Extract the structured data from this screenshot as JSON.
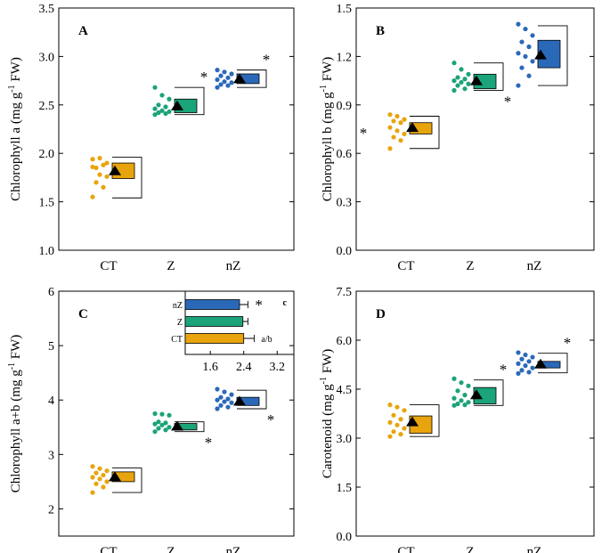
{
  "colors": {
    "CT": "#E8A40D",
    "Z": "#1BA37A",
    "nZ": "#2A69B8"
  },
  "chart_data": [
    {
      "id": "A",
      "type": "box-dot",
      "panel_letter": "A",
      "ylabel": "Chlorophyll a (mg g-1 FW)",
      "ylabel_main": "Chlorophyll a (mg g",
      "ylabel_sup": "-1",
      "ylabel_end": " FW)",
      "ylim": [
        1.0,
        3.5
      ],
      "yticks": [
        "1.0",
        "1.5",
        "2.0",
        "2.5",
        "3.0",
        "3.5"
      ],
      "categories": [
        "CT",
        "Z",
        "nZ"
      ],
      "groups": [
        {
          "name": "CT",
          "points": [
            1.94,
            1.95,
            1.9,
            1.85,
            1.88,
            1.86,
            1.78,
            1.76,
            1.7,
            1.65,
            1.55
          ],
          "mean": 1.82,
          "box": [
            1.74,
            1.9
          ],
          "whisker": [
            1.54,
            1.96
          ],
          "star": ""
        },
        {
          "name": "Z",
          "points": [
            2.68,
            2.6,
            2.56,
            2.5,
            2.48,
            2.46,
            2.44,
            2.43,
            2.42,
            2.41,
            2.4
          ],
          "mean": 2.49,
          "box": [
            2.42,
            2.56
          ],
          "whisker": [
            2.4,
            2.68
          ],
          "star": "*"
        },
        {
          "name": "nZ",
          "points": [
            2.86,
            2.84,
            2.82,
            2.8,
            2.78,
            2.76,
            2.74,
            2.73,
            2.71,
            2.7,
            2.68
          ],
          "mean": 2.77,
          "box": [
            2.72,
            2.82
          ],
          "whisker": [
            2.68,
            2.86
          ],
          "star": "*"
        }
      ],
      "star_positions": [
        "",
        "above",
        "above"
      ]
    },
    {
      "id": "B",
      "type": "box-dot",
      "panel_letter": "B",
      "ylabel": "Chlorophyll b (mg g-1 FW)",
      "ylabel_main": "Chlorophyll b (mg g",
      "ylabel_sup": "-1",
      "ylabel_end": " FW)",
      "ylim": [
        0.0,
        1.5
      ],
      "yticks": [
        "0.0",
        "0.3",
        "0.6",
        "0.9",
        "1.2",
        "1.5"
      ],
      "categories": [
        "CT",
        "Z",
        "nZ"
      ],
      "groups": [
        {
          "name": "CT",
          "points": [
            0.84,
            0.83,
            0.81,
            0.8,
            0.79,
            0.76,
            0.74,
            0.72,
            0.7,
            0.68,
            0.63
          ],
          "mean": 0.76,
          "box": [
            0.72,
            0.79
          ],
          "whisker": [
            0.63,
            0.83
          ],
          "star": "*"
        },
        {
          "name": "Z",
          "points": [
            1.16,
            1.12,
            1.09,
            1.07,
            1.06,
            1.05,
            1.04,
            1.03,
            1.02,
            1.0,
            0.99
          ],
          "mean": 1.05,
          "box": [
            1.0,
            1.09
          ],
          "whisker": [
            0.99,
            1.16
          ],
          "star": "*"
        },
        {
          "name": "nZ",
          "points": [
            1.4,
            1.37,
            1.33,
            1.29,
            1.26,
            1.22,
            1.2,
            1.17,
            1.13,
            1.08,
            1.02
          ],
          "mean": 1.21,
          "box": [
            1.13,
            1.3
          ],
          "whisker": [
            1.02,
            1.39
          ],
          "star": ""
        }
      ],
      "star_positions": [
        "left",
        "below",
        ""
      ]
    },
    {
      "id": "C",
      "type": "box-dot",
      "panel_letter": "C",
      "ylabel": "Chlorophyll a+b (mg g-1 FW)",
      "ylabel_main": "Chlorophyll a+b (mg g",
      "ylabel_sup": "-1",
      "ylabel_end": " FW)",
      "ylim": [
        1.5,
        6.0
      ],
      "yticks": [
        "2",
        "3",
        "4",
        "5",
        "6"
      ],
      "ytick_values": [
        2,
        3,
        4,
        5,
        6
      ],
      "categories": [
        "CT",
        "Z",
        "nZ"
      ],
      "groups": [
        {
          "name": "CT",
          "points": [
            2.78,
            2.74,
            2.7,
            2.66,
            2.62,
            2.58,
            2.55,
            2.5,
            2.46,
            2.4,
            2.3
          ],
          "mean": 2.59,
          "box": [
            2.5,
            2.68
          ],
          "whisker": [
            2.3,
            2.75
          ],
          "star": ""
        },
        {
          "name": "Z",
          "points": [
            3.75,
            3.74,
            3.72,
            3.6,
            3.58,
            3.56,
            3.54,
            3.5,
            3.48,
            3.45,
            3.42
          ],
          "mean": 3.52,
          "box": [
            3.45,
            3.57
          ],
          "whisker": [
            3.42,
            3.6
          ],
          "star": "*"
        },
        {
          "name": "nZ",
          "points": [
            4.2,
            4.15,
            4.1,
            4.05,
            4.02,
            4.0,
            3.97,
            3.95,
            3.9,
            3.87,
            3.84
          ],
          "mean": 3.98,
          "box": [
            3.9,
            4.05
          ],
          "whisker": [
            3.84,
            4.18
          ],
          "star": "*"
        }
      ],
      "star_positions": [
        "",
        "below",
        "below"
      ],
      "inset": {
        "letter": "c",
        "xticks": [
          "1.6",
          "2.4",
          "3.2"
        ],
        "xtick_values": [
          1.6,
          2.4,
          3.2
        ],
        "xlim": [
          1.0,
          3.6
        ],
        "bars": [
          {
            "name": "nZ",
            "value": 2.3,
            "error": 0.2,
            "annotation": "*"
          },
          {
            "name": "Z",
            "value": 2.38,
            "error": 0.12,
            "annotation": ""
          },
          {
            "name": "CT",
            "value": 2.4,
            "error": 0.25,
            "annotation": "a/b"
          }
        ]
      }
    },
    {
      "id": "D",
      "type": "box-dot",
      "panel_letter": "D",
      "ylabel": "Carotenoid (mg g-1 FW)",
      "ylabel_main": "Carotenoid (mg g",
      "ylabel_sup": "-1",
      "ylabel_end": " FW)",
      "ylim": [
        0.0,
        7.5
      ],
      "yticks": [
        "0.0",
        "1.5",
        "3.0",
        "4.5",
        "6.0",
        "7.5"
      ],
      "categories": [
        "CT",
        "Z",
        "nZ"
      ],
      "groups": [
        {
          "name": "CT",
          "points": [
            4.02,
            3.95,
            3.85,
            3.7,
            3.58,
            3.48,
            3.4,
            3.3,
            3.2,
            3.12,
            3.05
          ],
          "mean": 3.5,
          "box": [
            3.15,
            3.68
          ],
          "whisker": [
            3.05,
            4.02
          ],
          "star": ""
        },
        {
          "name": "Z",
          "points": [
            4.82,
            4.7,
            4.6,
            4.45,
            4.32,
            4.22,
            4.15,
            4.1,
            4.05,
            4.02,
            4.0
          ],
          "mean": 4.33,
          "box": [
            4.05,
            4.55
          ],
          "whisker": [
            4.0,
            4.78
          ],
          "star": "*"
        },
        {
          "name": "nZ",
          "points": [
            5.62,
            5.55,
            5.48,
            5.42,
            5.35,
            5.28,
            5.22,
            5.15,
            5.08,
            5.02,
            4.98
          ],
          "mean": 5.27,
          "box": [
            5.15,
            5.35
          ],
          "whisker": [
            5.0,
            5.6
          ],
          "star": "*"
        }
      ],
      "star_positions": [
        "",
        "above",
        "above"
      ]
    }
  ]
}
